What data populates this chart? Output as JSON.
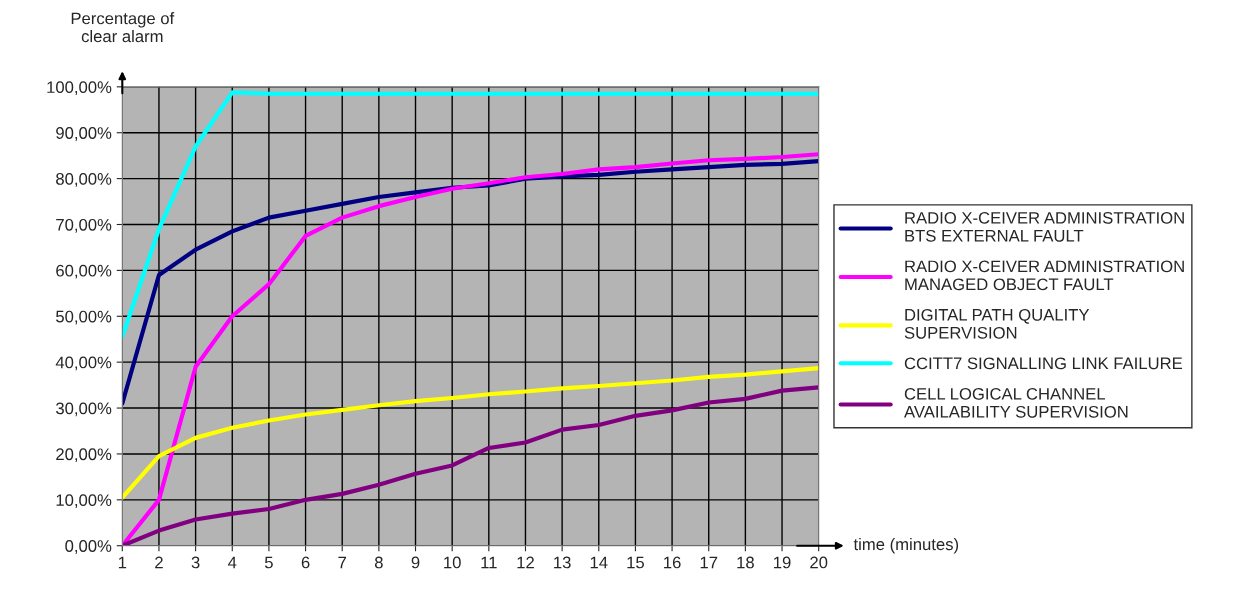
{
  "chart_data": {
    "type": "line",
    "ylabel": "Percentage of\nclear alarm",
    "xlabel": "time (minutes)",
    "categories": [
      "1",
      "2",
      "3",
      "4",
      "5",
      "6",
      "7",
      "8",
      "9",
      "10",
      "11",
      "12",
      "13",
      "14",
      "15",
      "16",
      "17",
      "18",
      "19",
      "20"
    ],
    "series": [
      {
        "name": "RADIO X-CEIVER ADMINISTRATION\nBTS EXTERNAL FAULT",
        "color": "#000080",
        "values": [
          31,
          59,
          64.5,
          68.5,
          71.5,
          73,
          74.5,
          76,
          77,
          78,
          78.5,
          80,
          80.5,
          80.8,
          81.5,
          82,
          82.5,
          83,
          83.2,
          83.8
        ]
      },
      {
        "name": "RADIO X-CEIVER ADMINISTRATION\nMANAGED OBJECT FAULT",
        "color": "#ff00ff",
        "values": [
          0,
          10,
          39,
          50,
          57,
          67.5,
          71.5,
          74,
          76,
          77.8,
          79,
          80.3,
          81,
          82,
          82.5,
          83.3,
          84,
          84.3,
          84.7,
          85.3
        ]
      },
      {
        "name": "DIGITAL PATH QUALITY\nSUPERVISION",
        "color": "#ffff00",
        "values": [
          10.5,
          19.5,
          23.5,
          25.7,
          27.3,
          28.6,
          29.6,
          30.6,
          31.5,
          32.2,
          33,
          33.6,
          34.3,
          34.8,
          35.4,
          36,
          36.8,
          37.3,
          38,
          38.7
        ]
      },
      {
        "name": "CCITT7 SIGNALLING LINK FAILURE",
        "color": "#00ffff",
        "values": [
          45.5,
          69,
          87,
          98.8,
          98.5,
          98.5,
          98.5,
          98.5,
          98.5,
          98.5,
          98.5,
          98.5,
          98.5,
          98.5,
          98.5,
          98.5,
          98.5,
          98.5,
          98.5,
          98.5
        ]
      },
      {
        "name": "CELL LOGICAL CHANNEL\nAVAILABILITY SUPERVISION",
        "color": "#800080",
        "values": [
          0,
          3.3,
          5.7,
          7,
          8,
          10,
          11.3,
          13.3,
          15.7,
          17.5,
          21.3,
          22.5,
          25.3,
          26.3,
          28.3,
          29.5,
          31.2,
          32,
          33.8,
          34.5
        ]
      }
    ],
    "ylim": [
      0,
      100
    ],
    "yticks": [
      {
        "value": 0,
        "label": "0,00%"
      },
      {
        "value": 10,
        "label": "10,00%"
      },
      {
        "value": 20,
        "label": "20,00%"
      },
      {
        "value": 30,
        "label": "30,00%"
      },
      {
        "value": 40,
        "label": "40,00%"
      },
      {
        "value": 50,
        "label": "50,00%"
      },
      {
        "value": 60,
        "label": "60,00%"
      },
      {
        "value": 70,
        "label": "70,00%"
      },
      {
        "value": 80,
        "label": "80,00%"
      },
      {
        "value": 90,
        "label": "90,00%"
      },
      {
        "value": 100,
        "label": "100,00%"
      }
    ],
    "grid": true,
    "legend": "right",
    "marker": "none",
    "line_style": "solid"
  }
}
